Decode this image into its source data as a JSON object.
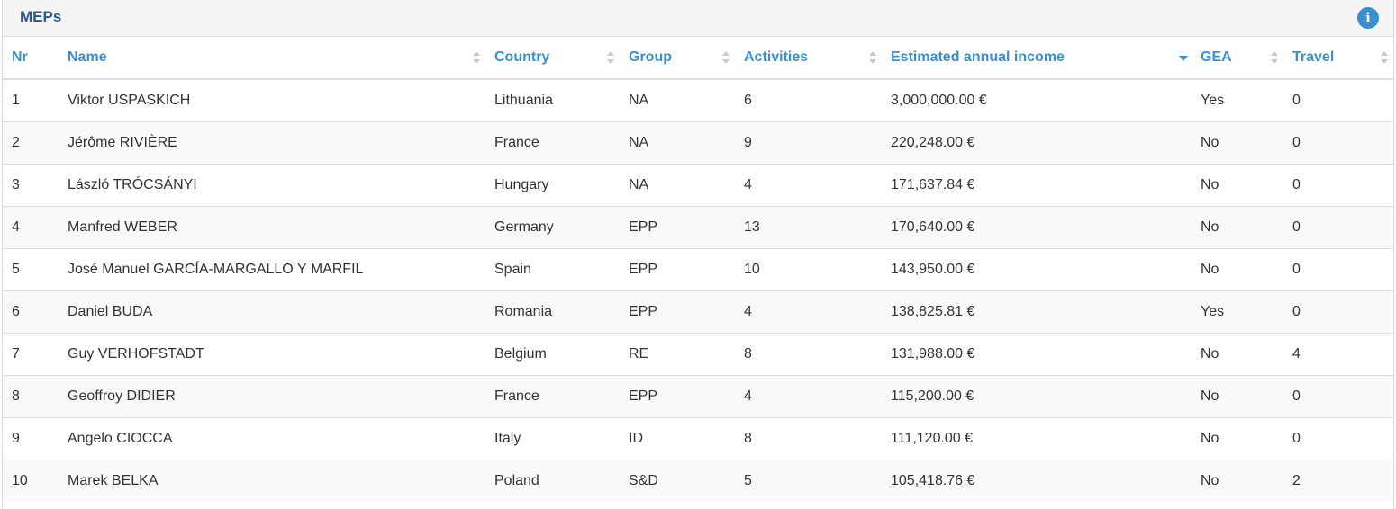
{
  "panel": {
    "title": "MEPs",
    "info_icon": "info-icon",
    "info_glyph": "i"
  },
  "table": {
    "columns": [
      {
        "label": "Nr"
      },
      {
        "label": "Name"
      },
      {
        "label": "Country"
      },
      {
        "label": "Group"
      },
      {
        "label": "Activities"
      },
      {
        "label": "Estimated annual income"
      },
      {
        "label": "GEA"
      },
      {
        "label": "Travel"
      }
    ],
    "rows": [
      {
        "nr": "1",
        "name": "Viktor USPASKICH",
        "country": "Lithuania",
        "group": "NA",
        "activities": "6",
        "income": "3,000,000.00 €",
        "gea": "Yes",
        "travel": "0"
      },
      {
        "nr": "2",
        "name": "Jérôme RIVIÈRE",
        "country": "France",
        "group": "NA",
        "activities": "9",
        "income": "220,248.00 €",
        "gea": "No",
        "travel": "0"
      },
      {
        "nr": "3",
        "name": "László TRÓCSÁNYI",
        "country": "Hungary",
        "group": "NA",
        "activities": "4",
        "income": "171,637.84 €",
        "gea": "No",
        "travel": "0"
      },
      {
        "nr": "4",
        "name": "Manfred WEBER",
        "country": "Germany",
        "group": "EPP",
        "activities": "13",
        "income": "170,640.00 €",
        "gea": "No",
        "travel": "0"
      },
      {
        "nr": "5",
        "name": "José Manuel GARCÍA-MARGALLO Y MARFIL",
        "country": "Spain",
        "group": "EPP",
        "activities": "10",
        "income": "143,950.00 €",
        "gea": "No",
        "travel": "0"
      },
      {
        "nr": "6",
        "name": "Daniel BUDA",
        "country": "Romania",
        "group": "EPP",
        "activities": "4",
        "income": "138,825.81 €",
        "gea": "Yes",
        "travel": "0"
      },
      {
        "nr": "7",
        "name": "Guy VERHOFSTADT",
        "country": "Belgium",
        "group": "RE",
        "activities": "8",
        "income": "131,988.00 €",
        "gea": "No",
        "travel": "4"
      },
      {
        "nr": "8",
        "name": "Geoffroy DIDIER",
        "country": "France",
        "group": "EPP",
        "activities": "4",
        "income": "115,200.00 €",
        "gea": "No",
        "travel": "0"
      },
      {
        "nr": "9",
        "name": "Angelo CIOCCA",
        "country": "Italy",
        "group": "ID",
        "activities": "8",
        "income": "111,120.00 €",
        "gea": "No",
        "travel": "0"
      },
      {
        "nr": "10",
        "name": "Marek BELKA",
        "country": "Poland",
        "group": "S&D",
        "activities": "5",
        "income": "105,418.76 €",
        "gea": "No",
        "travel": "2"
      }
    ]
  }
}
